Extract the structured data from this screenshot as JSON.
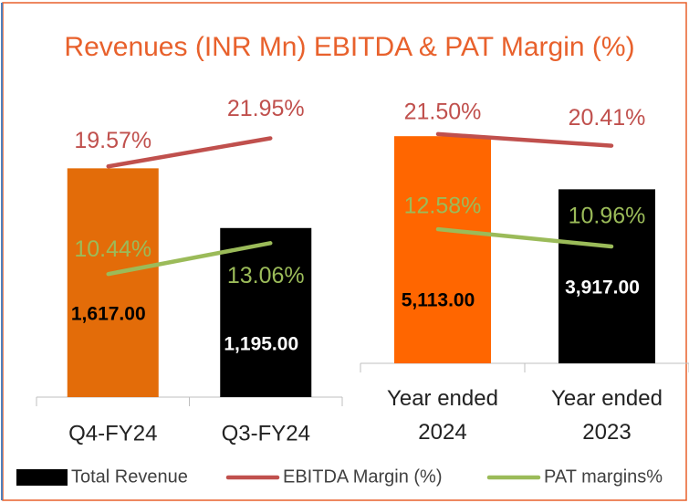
{
  "chart_data": [
    {
      "type": "bar",
      "title": "Revenues (INR Mn) EBITDA & PAT Margin (%)",
      "categories": [
        "Q4-FY24",
        "Q3-FY24"
      ],
      "ylim": [
        0,
        2000
      ],
      "y2lim": [
        0,
        24
      ],
      "series": [
        {
          "name": "Total Revenue",
          "color": "#000000",
          "bar_colors": [
            "#E36C09",
            "#000000"
          ],
          "values": [
            1617,
            1195
          ],
          "value_labels": [
            "1,617.00",
            "1,195.00"
          ]
        },
        {
          "name": "EBITDA Margin (%)",
          "type": "line",
          "axis": "y2",
          "color": "#C0504D",
          "values": [
            19.57,
            21.95
          ],
          "value_labels": [
            "19.57%",
            "21.95%"
          ]
        },
        {
          "name": "PAT margins%",
          "type": "line",
          "axis": "y2",
          "color": "#9BBB59",
          "values": [
            10.44,
            13.06
          ],
          "value_labels": [
            "10.44%",
            "13.06%"
          ]
        }
      ]
    },
    {
      "type": "bar",
      "categories": [
        "Year ended 2024",
        "Year ended 2023"
      ],
      "ylim": [
        0,
        6000
      ],
      "y2lim": [
        0,
        25
      ],
      "series": [
        {
          "color": "#000000",
          "bar_colors": [
            "#FF6600",
            "#000000"
          ],
          "values": [
            5113,
            3917
          ],
          "value_labels": [
            "5,113.00",
            "3,917.00"
          ]
        },
        {
          "type": "line",
          "axis": "y2",
          "color": "#C0504D",
          "values": [
            21.5,
            20.41
          ],
          "value_labels": [
            "21.50%",
            "20.41%"
          ]
        },
        {
          "type": "line",
          "axis": "y2",
          "color": "#9BBB59",
          "values": [
            12.58,
            10.96
          ],
          "value_labels": [
            "12.58%",
            "10.96%"
          ]
        }
      ]
    }
  ]
}
